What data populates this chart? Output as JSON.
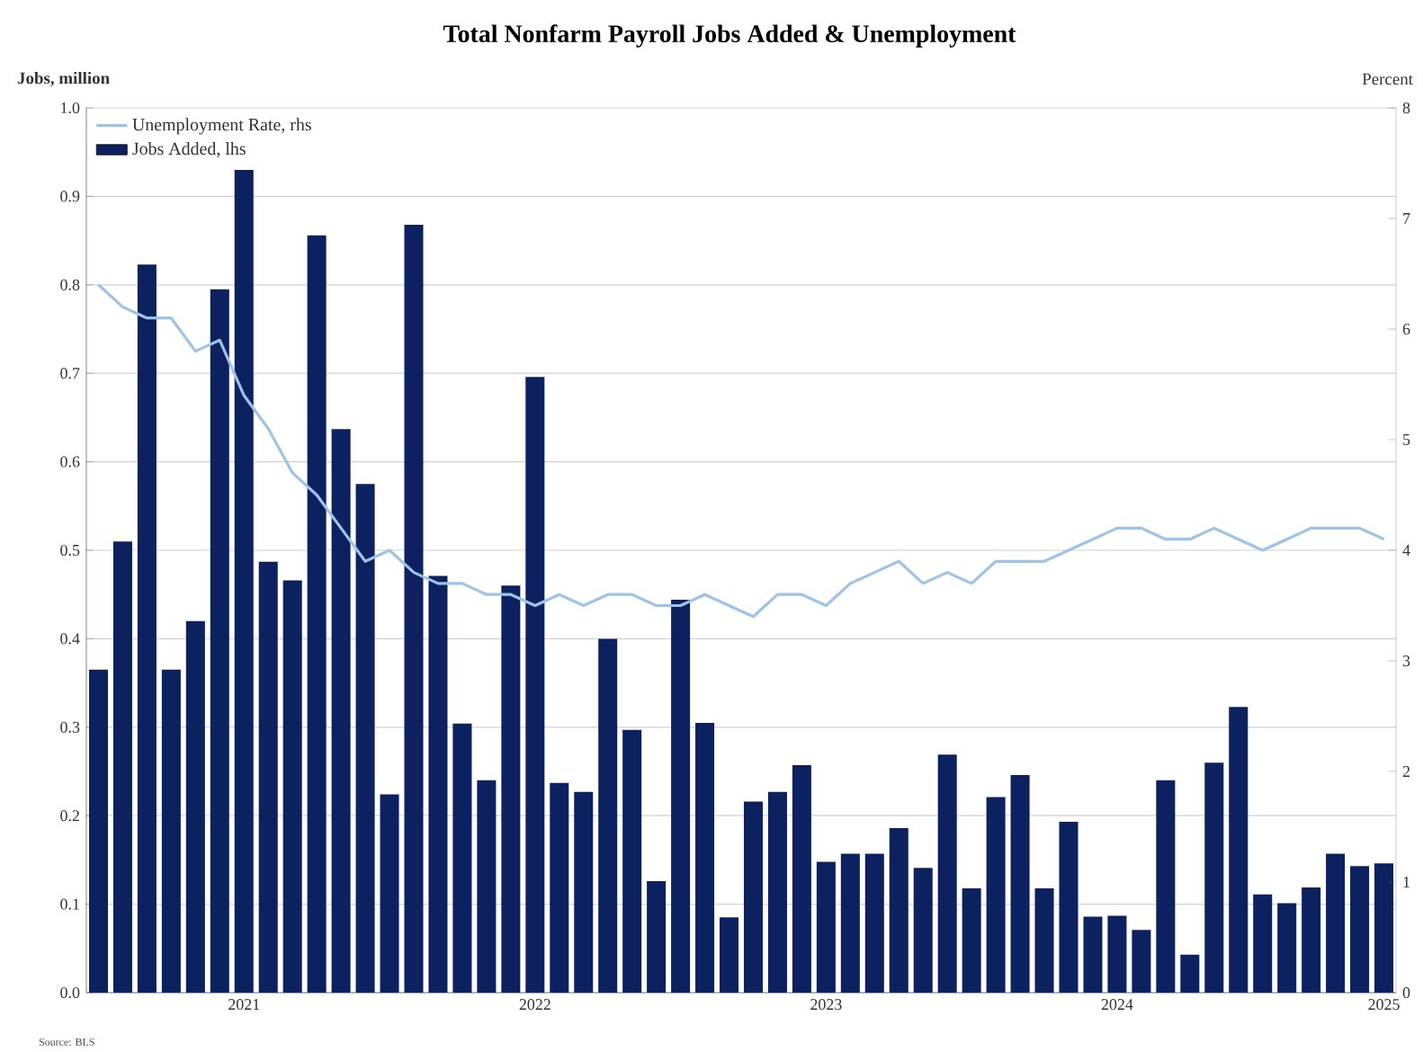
{
  "chart_data": {
    "type": "bar",
    "title": "Total Nonfarm Payroll Jobs Added & Unemployment",
    "ylabel": "Jobs, million",
    "y2label": "Percent",
    "annotations": [
      "Source: BLS"
    ],
    "categories": [
      null,
      null,
      null,
      null,
      null,
      null,
      "2021",
      null,
      null,
      null,
      null,
      null,
      null,
      null,
      null,
      null,
      null,
      null,
      "2022",
      null,
      null,
      null,
      null,
      null,
      null,
      null,
      null,
      null,
      null,
      null,
      "2023",
      null,
      null,
      null,
      null,
      null,
      null,
      null,
      null,
      null,
      null,
      null,
      "2024",
      null,
      null,
      null,
      null,
      null,
      null,
      null,
      null,
      null,
      null,
      "2025"
    ],
    "ylim": [
      0,
      1
    ],
    "yticks": [
      {
        "value": 0,
        "label": "0.0"
      },
      0.1,
      0.2,
      0.3,
      0.4,
      0.5,
      0.6,
      0.7,
      0.8,
      0.9,
      {
        "value": 1,
        "label": "1.0"
      }
    ],
    "y2lim": [
      0,
      8
    ],
    "y2ticks": [
      0,
      1,
      2,
      3,
      4,
      5,
      6,
      7,
      8
    ],
    "grid": "y",
    "legend": "top left",
    "series": [
      {
        "name": "Unemployment Rate, rhs",
        "type": "line",
        "axis": "y2",
        "color": "#9dc3e6",
        "values": [
          6.4,
          6.2,
          6.1,
          6.1,
          5.8,
          5.9,
          5.4,
          5.1,
          4.7,
          4.5,
          4.2,
          3.9,
          4.0,
          3.8,
          3.7,
          3.7,
          3.6,
          3.6,
          3.5,
          3.6,
          3.5,
          3.6,
          3.6,
          3.5,
          3.5,
          3.6,
          3.5,
          3.4,
          3.6,
          3.6,
          3.5,
          3.7,
          3.8,
          3.9,
          3.7,
          3.8,
          3.7,
          3.9,
          3.9,
          3.9,
          4.0,
          4.1,
          4.2,
          4.2,
          4.1,
          4.1,
          4.2,
          4.1,
          4.0,
          4.1,
          4.2,
          4.2,
          4.2,
          4.1
        ]
      },
      {
        "name": "Jobs Added, lhs",
        "color": "#0b2160",
        "values": [
          0.365,
          0.51,
          0.823,
          0.365,
          0.42,
          0.795,
          0.93,
          0.487,
          0.466,
          0.856,
          0.637,
          0.575,
          0.224,
          0.868,
          0.471,
          0.304,
          0.24,
          0.46,
          0.696,
          0.237,
          0.227,
          0.4,
          0.297,
          0.126,
          0.444,
          0.305,
          0.085,
          0.216,
          0.227,
          0.257,
          0.148,
          0.157,
          0.157,
          0.186,
          0.141,
          0.269,
          0.118,
          0.221,
          0.246,
          0.118,
          0.193,
          0.086,
          0.087,
          0.071,
          0.24,
          0.043,
          0.26,
          0.323,
          0.111,
          0.101,
          0.119,
          0.157,
          0.143,
          0.146
        ]
      }
    ]
  }
}
